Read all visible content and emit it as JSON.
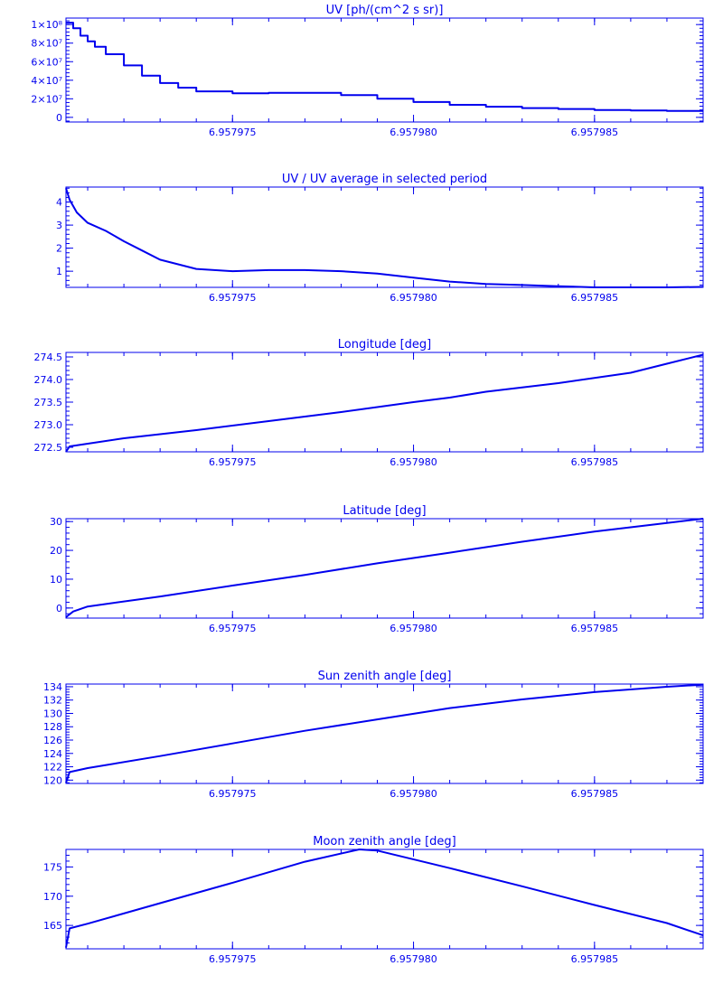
{
  "colors": {
    "ink": "#0000ee",
    "background": "#ffffff"
  },
  "chart_data": [
    {
      "type": "line",
      "title": "UV [ph/(cm^2 s sr)]",
      "xlabel": "",
      "ylabel": "",
      "grid": false,
      "step": true,
      "xlim": [
        6.9579704,
        6.957988
      ],
      "ylim": [
        -5000000,
        107000000
      ],
      "x_tick_values": [
        6.957975,
        6.95798,
        6.957985
      ],
      "x_tick_labels": [
        "6.957975",
        "6.957980",
        "6.957985"
      ],
      "y_tick_values": [
        0,
        20000000,
        40000000,
        60000000,
        80000000,
        100000000
      ],
      "y_tick_labels": [
        "0",
        "2×10⁷",
        "4×10⁷",
        "6×10⁷",
        "8×10⁷",
        "1×10⁸"
      ],
      "x": [
        6.9579704,
        6.9579706,
        6.9579708,
        6.957971,
        6.9579712,
        6.9579715,
        6.957972,
        6.9579725,
        6.957973,
        6.9579735,
        6.957974,
        6.957975,
        6.957976,
        6.957977,
        6.957978,
        6.957979,
        6.95798,
        6.957981,
        6.957982,
        6.957983,
        6.957984,
        6.957985,
        6.957986,
        6.957987,
        6.957988
      ],
      "y": [
        102000000,
        96000000,
        88000000,
        82000000,
        76000000,
        68000000,
        56000000,
        45000000,
        37000000,
        32000000,
        28000000,
        26000000,
        26500000,
        26500000,
        24000000,
        20000000,
        16500000,
        13500000,
        11500000,
        10000000,
        9000000,
        8000000,
        7500000,
        7000000,
        7000000
      ]
    },
    {
      "type": "line",
      "title": "UV / UV average in selected period",
      "xlabel": "",
      "ylabel": "",
      "grid": false,
      "xlim": [
        6.9579704,
        6.957988
      ],
      "ylim": [
        0.3,
        4.65
      ],
      "x_tick_values": [
        6.957975,
        6.95798,
        6.957985
      ],
      "x_tick_labels": [
        "6.957975",
        "6.957980",
        "6.957985"
      ],
      "y_tick_values": [
        1,
        2,
        3,
        4
      ],
      "y_tick_labels": [
        "1",
        "2",
        "3",
        "4"
      ],
      "x": [
        6.9579704,
        6.9579705,
        6.9579707,
        6.957971,
        6.9579715,
        6.957972,
        6.9579725,
        6.957973,
        6.957974,
        6.957975,
        6.957976,
        6.957977,
        6.957978,
        6.957979,
        6.95798,
        6.957981,
        6.957982,
        6.957983,
        6.957984,
        6.957985,
        6.957986,
        6.957987,
        6.957988
      ],
      "y": [
        4.6,
        4.1,
        3.55,
        3.1,
        2.75,
        2.3,
        1.9,
        1.5,
        1.1,
        1.0,
        1.05,
        1.05,
        1.0,
        0.9,
        0.72,
        0.55,
        0.45,
        0.4,
        0.35,
        0.3,
        0.3,
        0.3,
        0.32
      ]
    },
    {
      "type": "line",
      "title": "Longitude [deg]",
      "xlabel": "",
      "ylabel": "",
      "grid": false,
      "xlim": [
        6.9579704,
        6.957988
      ],
      "ylim": [
        272.4,
        274.6
      ],
      "x_tick_values": [
        6.957975,
        6.95798,
        6.957985
      ],
      "x_tick_labels": [
        "6.957975",
        "6.957980",
        "6.957985"
      ],
      "y_tick_values": [
        272.5,
        273.0,
        273.5,
        274.0,
        274.5
      ],
      "y_tick_labels": [
        "272.5",
        "273.0",
        "273.5",
        "274.0",
        "274.5"
      ],
      "x": [
        6.9579704,
        6.9579705,
        6.957972,
        6.957974,
        6.957976,
        6.957978,
        6.95798,
        6.957981,
        6.957982,
        6.957984,
        6.957986,
        6.957987,
        6.957988
      ],
      "y": [
        272.4,
        272.52,
        272.7,
        272.88,
        273.08,
        273.28,
        273.5,
        273.6,
        273.73,
        273.92,
        274.15,
        274.35,
        274.55
      ]
    },
    {
      "type": "line",
      "title": "Latitude [deg]",
      "xlabel": "",
      "ylabel": "",
      "grid": false,
      "xlim": [
        6.9579704,
        6.957988
      ],
      "ylim": [
        -3.5,
        31
      ],
      "x_tick_values": [
        6.957975,
        6.95798,
        6.957985
      ],
      "x_tick_labels": [
        "6.957975",
        "6.957980",
        "6.957985"
      ],
      "y_tick_values": [
        0,
        10,
        20,
        30
      ],
      "y_tick_labels": [
        "0",
        "10",
        "20",
        "30"
      ],
      "x": [
        6.9579704,
        6.9579706,
        6.957971,
        6.957973,
        6.957975,
        6.957977,
        6.957979,
        6.957981,
        6.957983,
        6.957985,
        6.957987,
        6.957988
      ],
      "y": [
        -3.2,
        -1.2,
        0.5,
        4,
        7.8,
        11.5,
        15.5,
        19.2,
        23,
        26.5,
        29.5,
        31
      ]
    },
    {
      "type": "line",
      "title": "Sun zenith angle [deg]",
      "xlabel": "",
      "ylabel": "",
      "grid": false,
      "xlim": [
        6.9579704,
        6.957988
      ],
      "ylim": [
        119.5,
        134.4
      ],
      "x_tick_values": [
        6.957975,
        6.95798,
        6.957985
      ],
      "x_tick_labels": [
        "6.957975",
        "6.957980",
        "6.957985"
      ],
      "y_tick_values": [
        120,
        122,
        124,
        126,
        128,
        130,
        132,
        134
      ],
      "y_tick_labels": [
        "120",
        "122",
        "124",
        "126",
        "128",
        "130",
        "132",
        "134"
      ],
      "x": [
        6.9579704,
        6.9579705,
        6.957971,
        6.957973,
        6.957975,
        6.957977,
        6.957979,
        6.957981,
        6.957983,
        6.957985,
        6.957987,
        6.957988
      ],
      "y": [
        119.6,
        121.2,
        121.8,
        123.6,
        125.5,
        127.4,
        129.1,
        130.8,
        132.1,
        133.2,
        134.0,
        134.3
      ]
    },
    {
      "type": "line",
      "title": "Moon zenith angle [deg]",
      "xlabel": "",
      "ylabel": "",
      "grid": false,
      "xlim": [
        6.9579704,
        6.957988
      ],
      "ylim": [
        161,
        178
      ],
      "x_tick_values": [
        6.957975,
        6.95798,
        6.957985
      ],
      "x_tick_labels": [
        "6.957975",
        "6.957980",
        "6.957985"
      ],
      "y_tick_values": [
        165,
        170,
        175
      ],
      "y_tick_labels": [
        "165",
        "170",
        "175"
      ],
      "x": [
        6.9579704,
        6.9579705,
        6.957971,
        6.957973,
        6.957975,
        6.957977,
        6.9579785,
        6.957979,
        6.957981,
        6.957983,
        6.957985,
        6.957987,
        6.957988
      ],
      "y": [
        161.2,
        164.5,
        165.3,
        168.8,
        172.3,
        175.9,
        178,
        177.8,
        174.8,
        171.7,
        168.5,
        165.4,
        163.3
      ]
    }
  ]
}
